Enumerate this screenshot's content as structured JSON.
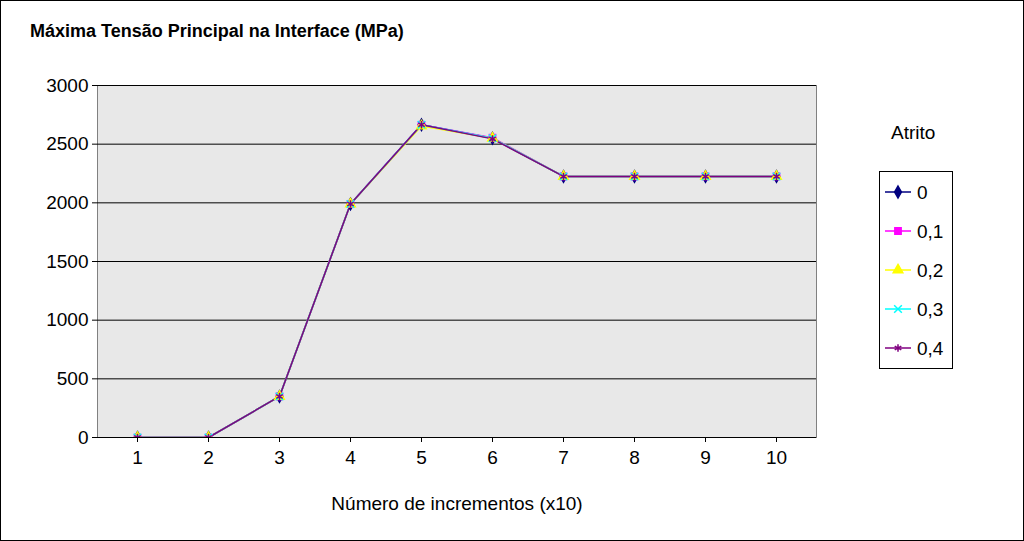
{
  "chart_data": {
    "type": "line",
    "title": "Máxima Tensão Principal na Interface (MPa)",
    "x_label": "Número de incrementos (x10)",
    "legend_title": "Atrito",
    "categories": [
      1,
      2,
      3,
      4,
      5,
      6,
      7,
      8,
      9,
      10
    ],
    "series": [
      {
        "name": "0",
        "color": "#000080",
        "marker": "diamond",
        "values": [
          0,
          0,
          350,
          1990,
          2665,
          2550,
          2225,
          2225,
          2225,
          2225
        ]
      },
      {
        "name": "0,1",
        "color": "#ff00ff",
        "marker": "square",
        "values": [
          0,
          0,
          350,
          1990,
          2665,
          2555,
          2225,
          2225,
          2225,
          2225
        ]
      },
      {
        "name": "0,2",
        "color": "#ffff00",
        "marker": "triangle",
        "values": [
          0,
          0,
          350,
          1990,
          2655,
          2550,
          2225,
          2225,
          2225,
          2225
        ]
      },
      {
        "name": "0,3",
        "color": "#00ffff",
        "marker": "times",
        "values": [
          0,
          0,
          350,
          1990,
          2665,
          2550,
          2225,
          2225,
          2225,
          2225
        ]
      },
      {
        "name": "0,4",
        "color": "#800080",
        "marker": "asterisk",
        "values": [
          0,
          0,
          350,
          1990,
          2665,
          2545,
          2225,
          2225,
          2225,
          2225
        ]
      }
    ],
    "ylim": [
      0,
      3000
    ],
    "yticks": [
      0,
      500,
      1000,
      1500,
      2000,
      2500,
      3000
    ],
    "grid": true,
    "legend": "right"
  }
}
